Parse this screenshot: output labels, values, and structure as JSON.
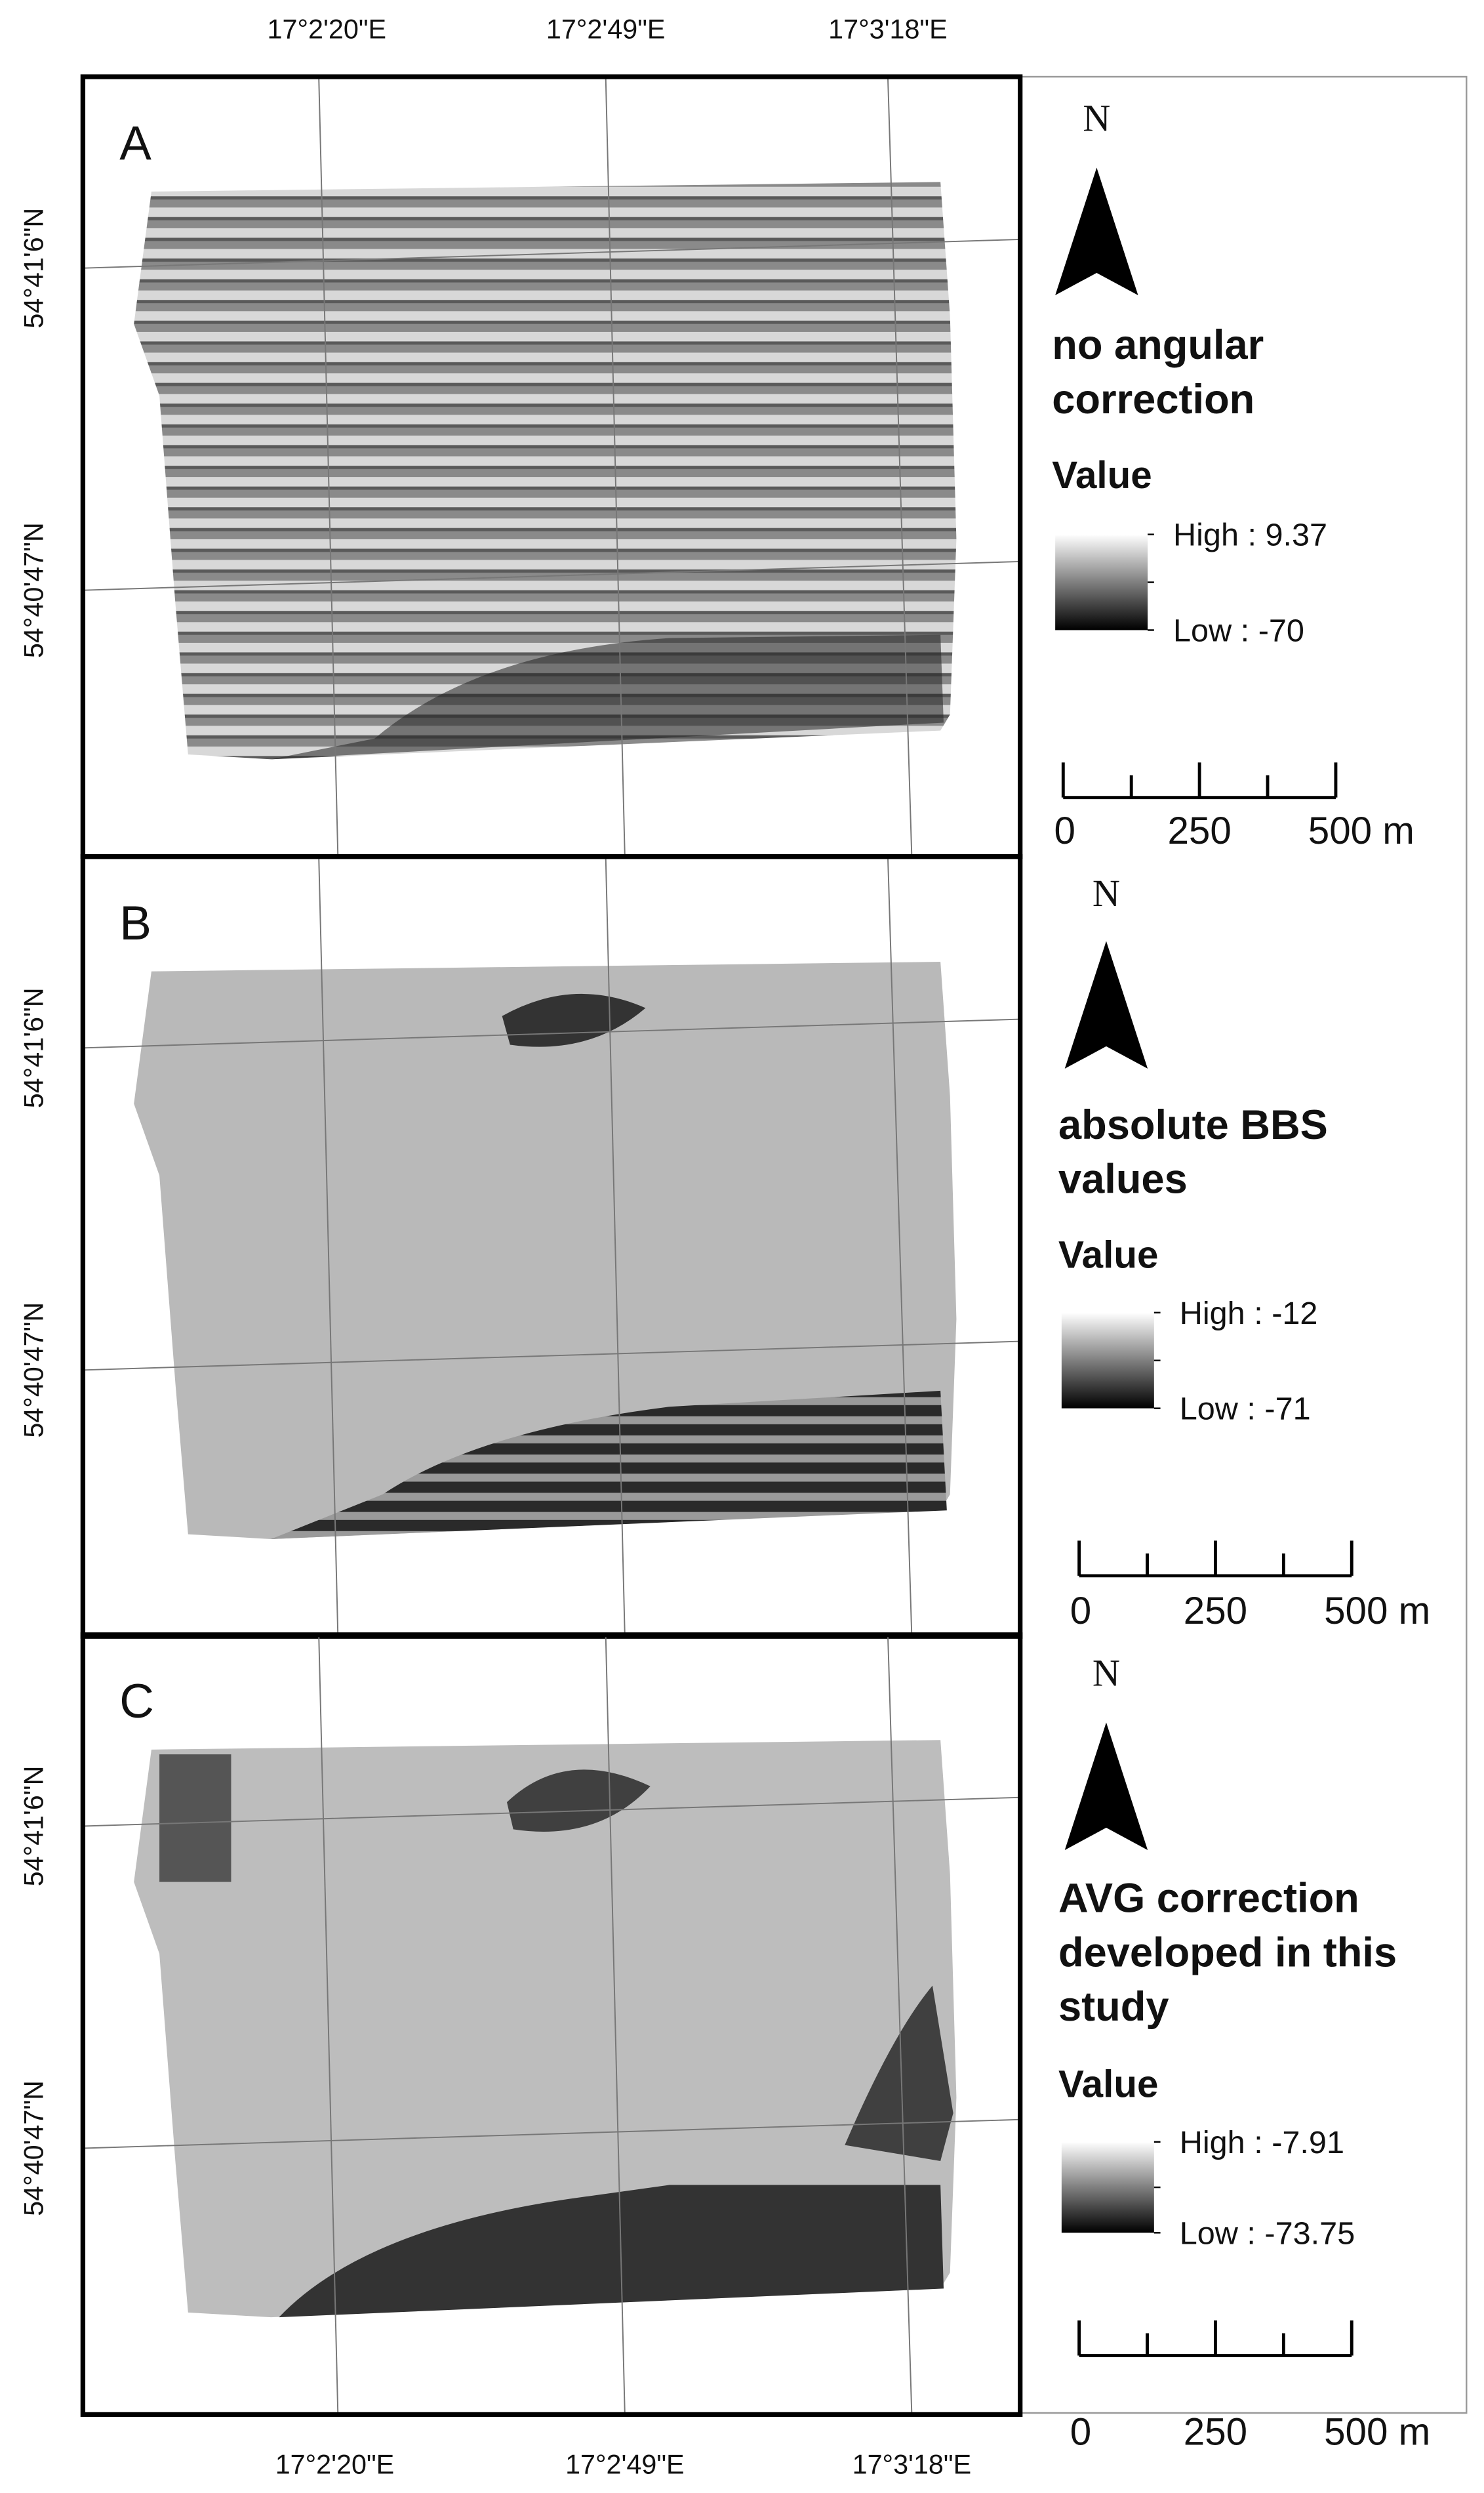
{
  "top_labels": [
    "17°2'20\"E",
    "17°2'49\"E",
    "17°3'18\"E"
  ],
  "bottom_labels": [
    "17°2'20\"E",
    "17°2'49\"E",
    "17°3'18\"E"
  ],
  "panels": [
    {
      "letter": "A",
      "lat_labels": [
        "54°41'6\"N",
        "54°40'47\"N"
      ],
      "north": "N",
      "legend_title": [
        "no angular",
        "correction"
      ],
      "value_heading": "Value",
      "high": "High : 9.37",
      "low": "Low : -70",
      "scale_labels": [
        "0",
        "250",
        "500 m"
      ]
    },
    {
      "letter": "B",
      "lat_labels": [
        "54°41'6\"N",
        "54°40'47\"N"
      ],
      "north": "N",
      "legend_title": [
        "absolute BBS",
        "values"
      ],
      "value_heading": "Value",
      "high": "High : -12",
      "low": "Low : -71",
      "scale_labels": [
        "0",
        "250",
        "500 m"
      ]
    },
    {
      "letter": "C",
      "lat_labels": [
        "54°41'6\"N",
        "54°40'47\"N"
      ],
      "north": "N",
      "legend_title": [
        "AVG correction",
        "developed in this",
        "study"
      ],
      "value_heading": "Value",
      "high": "High : -7.91",
      "low": "Low : -73.75",
      "scale_labels": [
        "0",
        "250",
        "500 m"
      ]
    }
  ]
}
